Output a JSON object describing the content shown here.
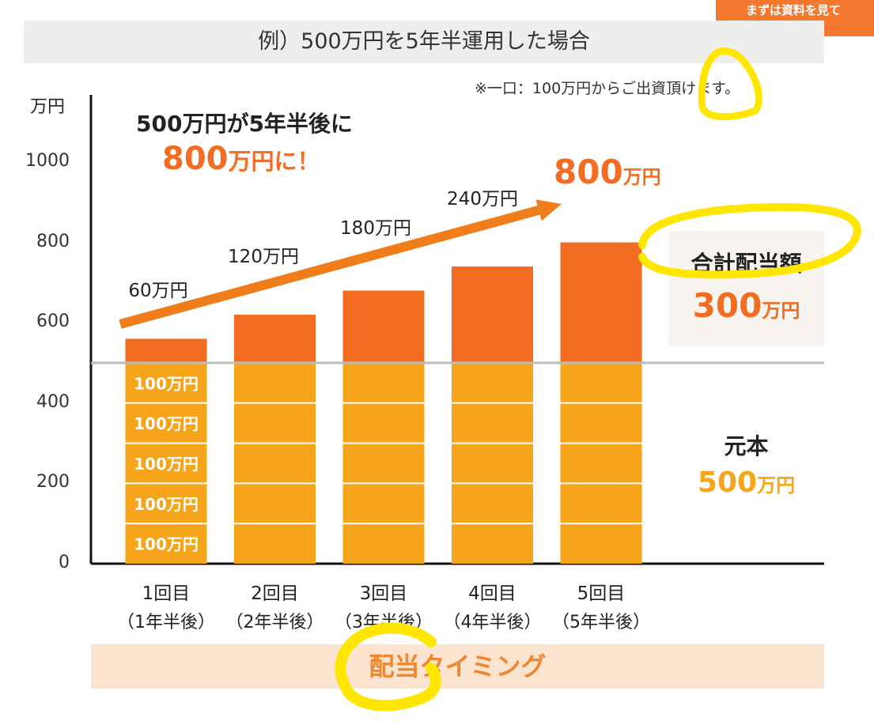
{
  "header": {
    "cta": "まずは資料を見て",
    "title": "例）500万円を5年半運用した場合",
    "note": "※一口：100万円からご出資頂けます。"
  },
  "headline": {
    "line1": "500万円が5年半後に",
    "line2_num": "800",
    "line2_unit": "万円に！"
  },
  "total": {
    "num": "800",
    "unit": "万円"
  },
  "dividend": {
    "title": "合計配当額",
    "num": "300",
    "unit": "万円"
  },
  "principal": {
    "title": "元本",
    "num": "500",
    "unit": "万円"
  },
  "footer": {
    "timing": "配当タイミング"
  },
  "colors": {
    "orange": "#f26d21",
    "amber": "#f6a51a",
    "arrow": "#ee7d1a",
    "highlight": "#ffe600"
  },
  "chart_data": {
    "type": "bar",
    "stacked": true,
    "unit_label": "万円",
    "yticks": [
      "0",
      "200",
      "400",
      "600",
      "800",
      "1000"
    ],
    "ylim": [
      0,
      1000
    ],
    "categories": [
      [
        "1回目",
        "（1年半後）"
      ],
      [
        "2回目",
        "（2年半後）"
      ],
      [
        "3回目",
        "（3年半後）"
      ],
      [
        "4回目",
        "（4年半後）"
      ],
      [
        "5回目",
        "（5年半後）"
      ]
    ],
    "series": [
      {
        "name": "元本",
        "values": [
          500,
          500,
          500,
          500,
          500
        ]
      },
      {
        "name": "合計配当額",
        "values": [
          60,
          120,
          180,
          240,
          300
        ]
      }
    ],
    "bar_labels": [
      "60万円",
      "120万円",
      "180万円",
      "240万円"
    ],
    "segment_label": "100万円",
    "segment_size": 100,
    "baseline": 500
  }
}
